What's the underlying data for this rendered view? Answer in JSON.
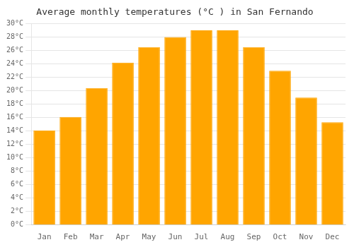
{
  "chart_data": {
    "type": "bar",
    "title": "Average monthly temperatures (°C ) in San Fernando",
    "categories": [
      "Jan",
      "Feb",
      "Mar",
      "Apr",
      "May",
      "Jun",
      "Jul",
      "Aug",
      "Sep",
      "Oct",
      "Nov",
      "Dec"
    ],
    "values": [
      14.1,
      16.1,
      20.4,
      24.2,
      26.5,
      28.0,
      29.0,
      29.0,
      26.5,
      23.0,
      19.0,
      15.3
    ],
    "color": "#FFA500",
    "ylim": [
      0,
      30
    ],
    "yticks": [
      {
        "value": 0,
        "label": "0°C"
      },
      {
        "value": 2,
        "label": "2°C"
      },
      {
        "value": 4,
        "label": "4°C"
      },
      {
        "value": 6,
        "label": "6°C"
      },
      {
        "value": 8,
        "label": "8°C"
      },
      {
        "value": 10,
        "label": "10°C"
      },
      {
        "value": 12,
        "label": "12°C"
      },
      {
        "value": 14,
        "label": "14°C"
      },
      {
        "value": 16,
        "label": "16°C"
      },
      {
        "value": 18,
        "label": "18°C"
      },
      {
        "value": 20,
        "label": "20°C"
      },
      {
        "value": 22,
        "label": "22°C"
      },
      {
        "value": 24,
        "label": "24°C"
      },
      {
        "value": 26,
        "label": "26°C"
      },
      {
        "value": 28,
        "label": "28°C"
      },
      {
        "value": 30,
        "label": "30°C"
      }
    ],
    "grid": "y"
  }
}
